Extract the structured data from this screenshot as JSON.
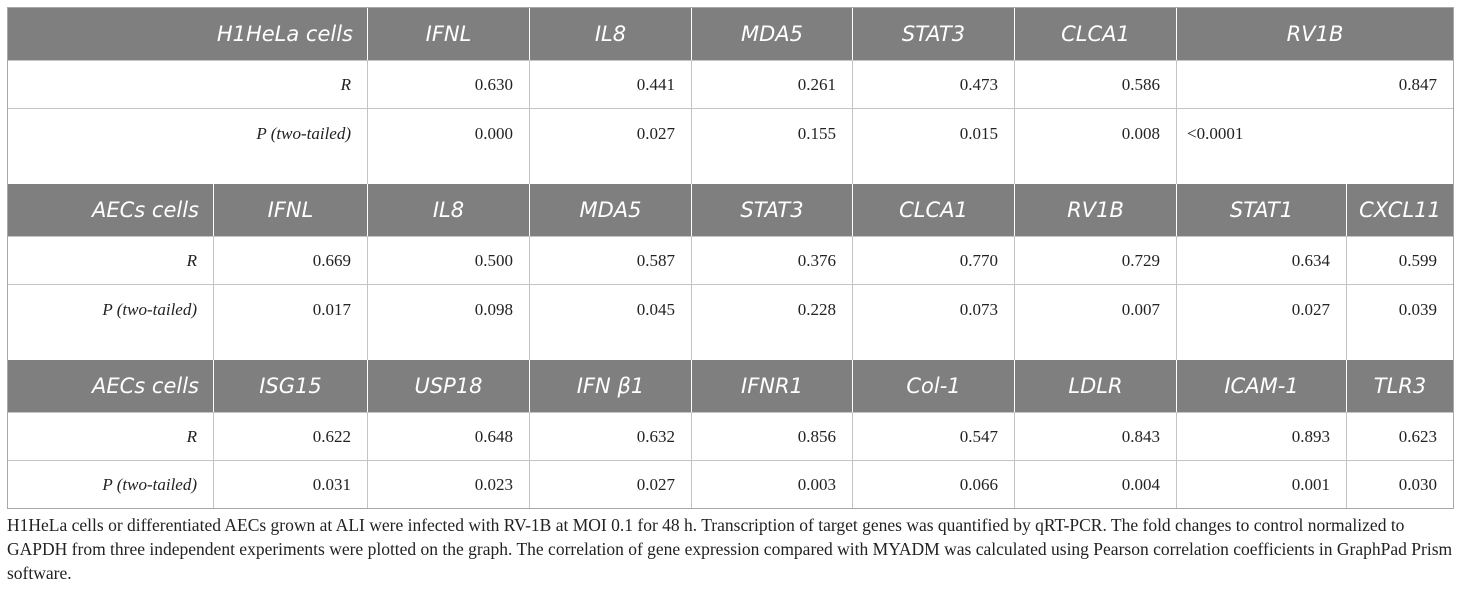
{
  "table": {
    "sections": [
      {
        "header": [
          "H1HeLa cells",
          "IFNL",
          "IL8",
          "MDA5",
          "STAT3",
          "CLCA1",
          "RV1B"
        ],
        "rows": [
          {
            "label": "R",
            "values": [
              "0.630",
              "0.441",
              "0.261",
              "0.473",
              "0.586",
              "0.847"
            ]
          },
          {
            "label": "P (two-tailed)",
            "values": [
              "0.000",
              "0.027",
              "0.155",
              "0.015",
              "0.008",
              "<0.0001"
            ]
          }
        ]
      },
      {
        "header": [
          "AECs cells",
          "IFNL",
          "IL8",
          "MDA5",
          "STAT3",
          "CLCA1",
          "RV1B",
          "STAT1",
          "CXCL11"
        ],
        "rows": [
          {
            "label": "R",
            "values": [
              "0.669",
              "0.500",
              "0.587",
              "0.376",
              "0.770",
              "0.729",
              "0.634",
              "0.599"
            ]
          },
          {
            "label": "P (two-tailed)",
            "values": [
              "0.017",
              "0.098",
              "0.045",
              "0.228",
              "0.073",
              "0.007",
              "0.027",
              "0.039"
            ]
          }
        ]
      },
      {
        "header": [
          "AECs cells",
          "ISG15",
          "USP18",
          "IFN β1",
          "IFNR1",
          "Col-1",
          "LDLR",
          "ICAM-1",
          "TLR3"
        ],
        "rows": [
          {
            "label": "R",
            "values": [
              "0.622",
              "0.648",
              "0.632",
              "0.856",
              "0.547",
              "0.843",
              "0.893",
              "0.623"
            ]
          },
          {
            "label": "P (two-tailed)",
            "values": [
              "0.031",
              "0.023",
              "0.027",
              "0.003",
              "0.066",
              "0.004",
              "0.001",
              "0.030"
            ]
          }
        ]
      }
    ]
  },
  "caption": "H1HeLa cells or differentiated AECs grown at ALI were infected with RV-1B at MOI 0.1 for 48 h. Transcription of target genes was quantified by qRT-PCR. The fold changes to control normalized to GAPDH from three independent experiments were plotted on the graph. The correlation of gene expression compared with MYADM was calculated using Pearson correlation coefficients in GraphPad Prism software."
}
